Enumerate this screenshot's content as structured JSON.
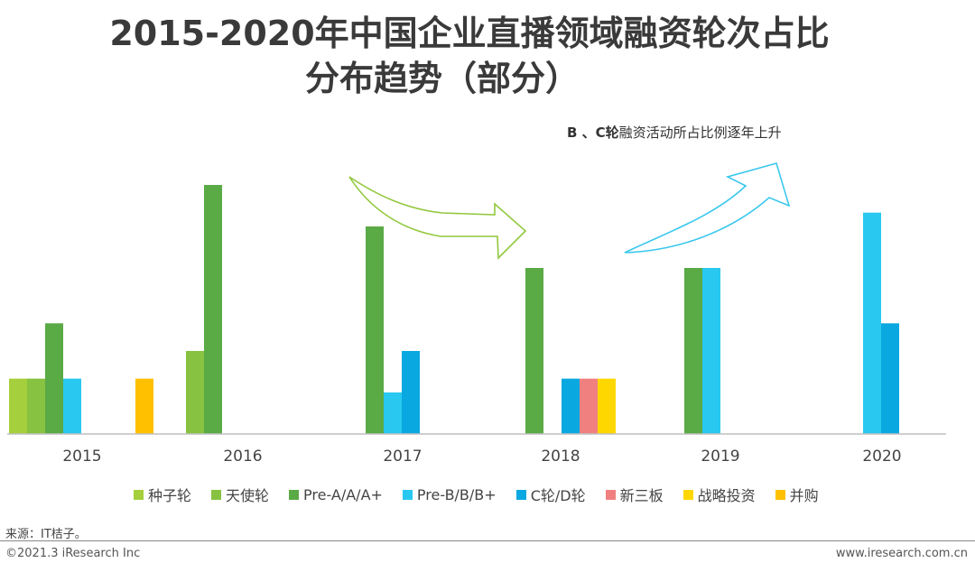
{
  "title": {
    "line1": "2015-2020年中国企业直播领域融资轮次占比",
    "line2": "分布趋势（部分）"
  },
  "annotation": {
    "bold_part": "B 、C轮",
    "rest": "融资活动所占比例逐年上升"
  },
  "chart_data": {
    "type": "bar",
    "title": "2015-2020年中国企业直播领域融资轮次占比分布趋势（部分）",
    "categories": [
      "2015",
      "2016",
      "2017",
      "2018",
      "2019",
      "2020"
    ],
    "ylim": [
      0,
      9
    ],
    "grid": false,
    "legend_position": "bottom",
    "series": [
      {
        "name": "种子轮",
        "color": "#a5cf3c",
        "values": [
          2,
          0,
          0,
          0,
          0,
          0
        ]
      },
      {
        "name": "天使轮",
        "color": "#87c240",
        "values": [
          2,
          3,
          0,
          0,
          0,
          0
        ]
      },
      {
        "name": "Pre-A/A/A+",
        "color": "#5aaa46",
        "values": [
          4,
          9,
          7.5,
          6,
          6,
          0
        ]
      },
      {
        "name": "Pre-B/B/B+",
        "color": "#28c8f0",
        "values": [
          2,
          0,
          1.5,
          0,
          6,
          8
        ]
      },
      {
        "name": "C轮/D轮",
        "color": "#0aa8e0",
        "values": [
          0,
          0,
          3,
          2,
          0,
          4
        ]
      },
      {
        "name": "新三板",
        "color": "#f08080",
        "values": [
          0,
          0,
          0,
          2,
          0,
          0
        ]
      },
      {
        "name": "战略投资",
        "color": "#ffd700",
        "values": [
          0,
          0,
          0,
          2,
          0,
          0
        ]
      },
      {
        "name": "并购",
        "color": "#ffc000",
        "values": [
          2,
          0,
          0,
          0,
          0,
          0
        ]
      }
    ]
  },
  "source": "来源：IT桔子。",
  "copyright": "©2021.3 iResearch Inc",
  "website": "www.iresearch.com.cn"
}
